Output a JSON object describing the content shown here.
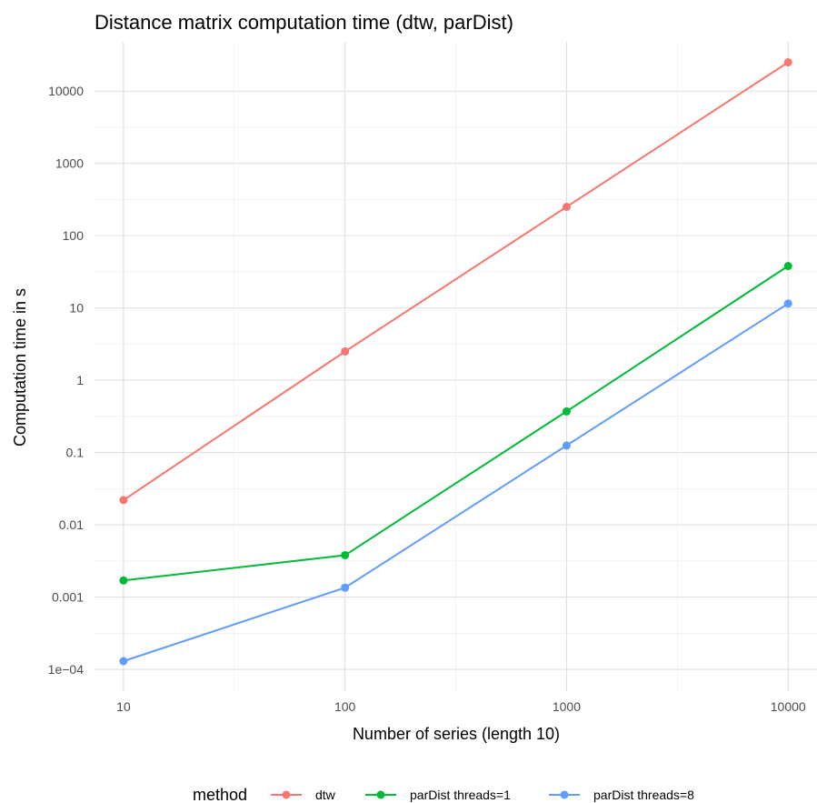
{
  "chart_data": {
    "type": "line",
    "title": "Distance matrix computation time (dtw, parDist)",
    "xlabel": "Number of series (length 10)",
    "ylabel": "Computation time in s",
    "x_scale": "log10",
    "y_scale": "log10",
    "xlim": [
      7.4,
      13500
    ],
    "ylim": [
      5e-05,
      48000
    ],
    "x_ticks": [
      10,
      100,
      1000,
      10000
    ],
    "x_tick_labels": [
      "10",
      "100",
      "1000",
      "10000"
    ],
    "y_ticks": [
      0.0001,
      0.001,
      0.01,
      0.1,
      1,
      10,
      100,
      1000,
      10000
    ],
    "y_tick_labels": [
      "1e−04",
      "0.001",
      "0.01",
      "0.1",
      "1",
      "10",
      "100",
      "1000",
      "10000"
    ],
    "grid": true,
    "legend_title": "method",
    "legend_position": "bottom",
    "x": [
      10,
      100,
      1000,
      10000
    ],
    "series": [
      {
        "name": "dtw",
        "color": "#F8766D",
        "values": [
          0.022,
          2.5,
          250,
          25000
        ]
      },
      {
        "name": "parDist threads=1",
        "color": "#00BA38",
        "values": [
          0.0017,
          0.0038,
          0.37,
          38
        ]
      },
      {
        "name": "parDist threads=8",
        "color": "#619CFF",
        "values": [
          0.00013,
          0.00135,
          0.125,
          11.5
        ]
      }
    ]
  }
}
